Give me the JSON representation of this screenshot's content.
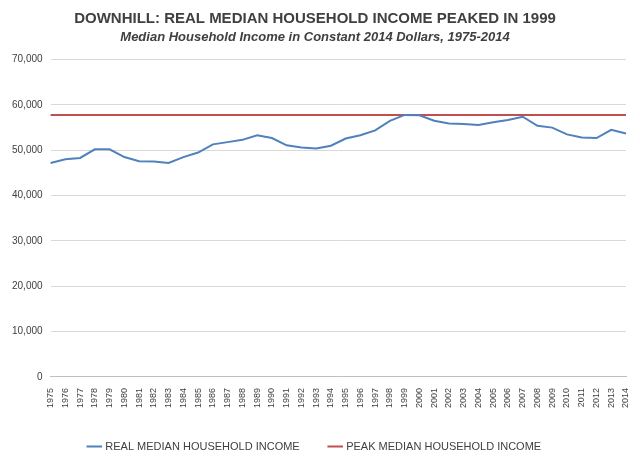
{
  "chart_data": {
    "type": "line",
    "title": "DOWNHILL: REAL MEDIAN HOUSEHOLD INCOME PEAKED IN 1999",
    "subtitle": "Median Household Income in Constant 2014 Dollars, 1975-2014",
    "categories": [
      "1975",
      "1976",
      "1977",
      "1978",
      "1979",
      "1980",
      "1981",
      "1982",
      "1983",
      "1984",
      "1985",
      "1986",
      "1987",
      "1988",
      "1989",
      "1990",
      "1991",
      "1992",
      "1993",
      "1994",
      "1995",
      "1996",
      "1997",
      "1998",
      "1999",
      "2000",
      "2001",
      "2002",
      "2003",
      "2004",
      "2005",
      "2006",
      "2007",
      "2008",
      "2009",
      "2010",
      "2011",
      "2012",
      "2013",
      "2014"
    ],
    "series": [
      {
        "name": "REAL MEDIAN HOUSEHOLD INCOME",
        "color": "#4f81bd",
        "values": [
          47200,
          48000,
          48300,
          50200,
          50200,
          48500,
          47600,
          47500,
          47200,
          48500,
          49500,
          51300,
          51800,
          52300,
          53300,
          52700,
          51100,
          50600,
          50400,
          51000,
          52600,
          53300,
          54400,
          56500,
          57800,
          57700,
          56500,
          55900,
          55800,
          55600,
          56200,
          56700,
          57400,
          55400,
          55000,
          53500,
          52800,
          52700,
          54500,
          53700
        ]
      },
      {
        "name": "PEAK MEDIAN HOUSEHOLD INCOME",
        "color": "#c0504d",
        "values": [
          57800,
          57800,
          57800,
          57800,
          57800,
          57800,
          57800,
          57800,
          57800,
          57800,
          57800,
          57800,
          57800,
          57800,
          57800,
          57800,
          57800,
          57800,
          57800,
          57800,
          57800,
          57800,
          57800,
          57800,
          57800,
          57800,
          57800,
          57800,
          57800,
          57800,
          57800,
          57800,
          57800,
          57800,
          57800,
          57800,
          57800,
          57800,
          57800,
          57800
        ]
      }
    ],
    "ylim": [
      0,
      70000
    ],
    "yticks": [
      0,
      {
        "value": 10000,
        "label": "10,000"
      },
      {
        "value": 20000,
        "label": "20,000"
      },
      {
        "value": 30000,
        "label": "30,000"
      },
      {
        "value": 40000,
        "label": "40,000"
      },
      {
        "value": 50000,
        "label": "50,000"
      },
      {
        "value": 60000,
        "label": "60,000"
      },
      {
        "value": 70000,
        "label": "70,000"
      }
    ],
    "grid": true,
    "legend": "bottom"
  }
}
